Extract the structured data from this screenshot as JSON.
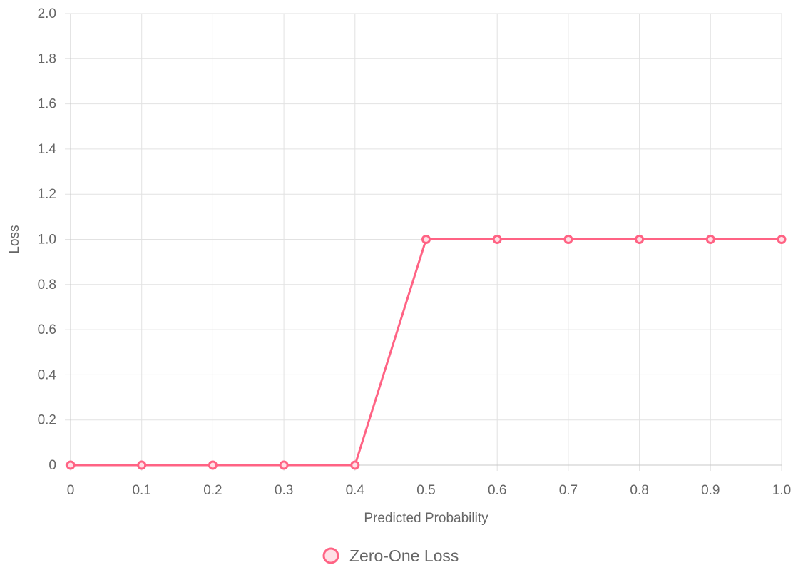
{
  "chart_data": {
    "type": "line",
    "xlabel": "Predicted Probability",
    "ylabel": "Loss",
    "x": [
      0,
      0.1,
      0.2,
      0.3,
      0.4,
      0.5,
      0.6,
      0.7,
      0.8,
      0.9,
      1.0
    ],
    "x_tick_labels": [
      "0",
      "0.1",
      "0.2",
      "0.3",
      "0.4",
      "0.5",
      "0.6",
      "0.7",
      "0.8",
      "0.9",
      "1.0"
    ],
    "y_tick_values": [
      0,
      0.2,
      0.4,
      0.6,
      0.8,
      1.0,
      1.2,
      1.4,
      1.6,
      1.8,
      2.0
    ],
    "y_tick_labels": [
      "0",
      "0.2",
      "0.4",
      "0.6",
      "0.8",
      "1.0",
      "1.2",
      "1.4",
      "1.6",
      "1.8",
      "2.0"
    ],
    "xlim": [
      0,
      1.0
    ],
    "ylim": [
      0,
      2.0
    ],
    "grid": true,
    "legend_position": "bottom-center",
    "series": [
      {
        "name": "Zero-One Loss",
        "values": [
          0,
          0,
          0,
          0,
          0,
          1,
          1,
          1,
          1,
          1,
          1
        ],
        "color": "#ff6384",
        "fill_color": "#ffe0e6"
      }
    ]
  }
}
